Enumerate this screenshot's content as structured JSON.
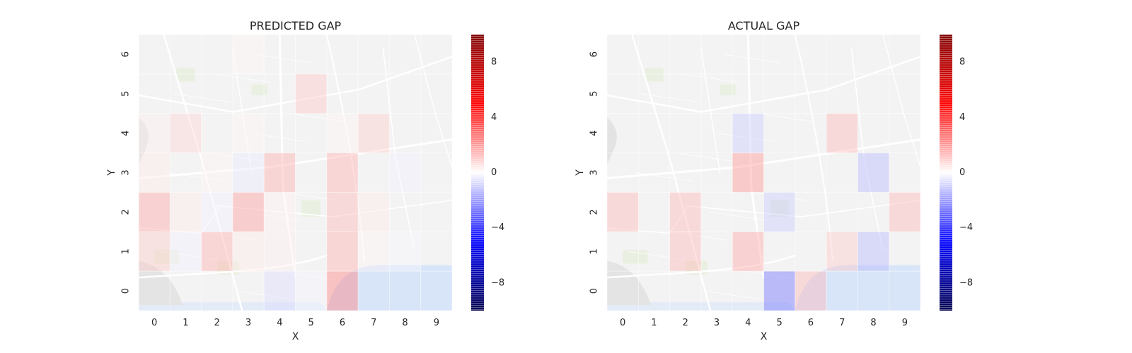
{
  "colors": {
    "positive": "#ff0000",
    "negative": "#0000ff",
    "neutral": "#ffffff",
    "map_land": "#efefef",
    "map_water": "#c9dbf6",
    "map_park": "#e2ebd6"
  },
  "chart_data": [
    {
      "type": "heatmap",
      "title": "PREDICTED GAP",
      "xlabel": "X",
      "ylabel": "Y",
      "x": [
        0,
        1,
        2,
        3,
        4,
        5,
        6,
        7,
        8,
        9
      ],
      "y": [
        0,
        1,
        2,
        3,
        4,
        5,
        6
      ],
      "colormap": "seismic",
      "vmin": -10,
      "vmax": 10,
      "background": "city street map",
      "cells": [
        {
          "x": 0,
          "y": 1,
          "value": 1.5
        },
        {
          "x": 0,
          "y": 2,
          "value": 2.5
        },
        {
          "x": 0,
          "y": 3,
          "value": 0.6
        },
        {
          "x": 0,
          "y": 4,
          "value": 0.5
        },
        {
          "x": 1,
          "y": 1,
          "value": -0.4
        },
        {
          "x": 1,
          "y": 2,
          "value": 0.6
        },
        {
          "x": 1,
          "y": 4,
          "value": 1.2
        },
        {
          "x": 2,
          "y": 1,
          "value": 2.2
        },
        {
          "x": 2,
          "y": 2,
          "value": -0.4
        },
        {
          "x": 2,
          "y": 3,
          "value": 0.3
        },
        {
          "x": 3,
          "y": 1,
          "value": 0.6
        },
        {
          "x": 3,
          "y": 2,
          "value": 2.8
        },
        {
          "x": 3,
          "y": 3,
          "value": -0.6
        },
        {
          "x": 3,
          "y": 4,
          "value": 0.3
        },
        {
          "x": 3,
          "y": 6,
          "value": 0.3
        },
        {
          "x": 4,
          "y": 0,
          "value": -1.0
        },
        {
          "x": 4,
          "y": 1,
          "value": 0.5
        },
        {
          "x": 4,
          "y": 2,
          "value": 0.4
        },
        {
          "x": 4,
          "y": 3,
          "value": 2.3
        },
        {
          "x": 5,
          "y": 5,
          "value": 1.6
        },
        {
          "x": 5,
          "y": 0,
          "value": -0.3
        },
        {
          "x": 6,
          "y": 0,
          "value": 3.5
        },
        {
          "x": 6,
          "y": 1,
          "value": 2.2
        },
        {
          "x": 6,
          "y": 2,
          "value": 2.0
        },
        {
          "x": 6,
          "y": 3,
          "value": 2.2
        },
        {
          "x": 6,
          "y": 4,
          "value": 0.3
        },
        {
          "x": 7,
          "y": 2,
          "value": 0.6
        },
        {
          "x": 7,
          "y": 4,
          "value": 1.4
        },
        {
          "x": 7,
          "y": 1,
          "value": 0.3
        },
        {
          "x": 8,
          "y": 3,
          "value": -0.4
        },
        {
          "x": 8,
          "y": 1,
          "value": -0.2
        }
      ],
      "colorbar_ticks": [
        -8,
        -4,
        0,
        4,
        8
      ]
    },
    {
      "type": "heatmap",
      "title": "ACTUAL GAP",
      "xlabel": "X",
      "ylabel": "Y",
      "x": [
        0,
        1,
        2,
        3,
        4,
        5,
        6,
        7,
        8,
        9
      ],
      "y": [
        0,
        1,
        2,
        3,
        4,
        5,
        6
      ],
      "colormap": "seismic",
      "vmin": -10,
      "vmax": 10,
      "background": "city street map",
      "cells": [
        {
          "x": 0,
          "y": 2,
          "value": 2.0
        },
        {
          "x": 2,
          "y": 1,
          "value": 2.0
        },
        {
          "x": 2,
          "y": 2,
          "value": 2.0
        },
        {
          "x": 4,
          "y": 1,
          "value": 2.5
        },
        {
          "x": 4,
          "y": 3,
          "value": 3.0
        },
        {
          "x": 4,
          "y": 4,
          "value": -1.5
        },
        {
          "x": 5,
          "y": 0,
          "value": -4.0
        },
        {
          "x": 5,
          "y": 2,
          "value": -1.5
        },
        {
          "x": 6,
          "y": 0,
          "value": 2.0
        },
        {
          "x": 7,
          "y": 1,
          "value": 1.5
        },
        {
          "x": 7,
          "y": 4,
          "value": 2.0
        },
        {
          "x": 8,
          "y": 1,
          "value": -2.0
        },
        {
          "x": 8,
          "y": 3,
          "value": -2.0
        },
        {
          "x": 9,
          "y": 2,
          "value": 2.0
        }
      ],
      "colorbar_ticks": [
        -8,
        -4,
        0,
        4,
        8
      ]
    }
  ]
}
